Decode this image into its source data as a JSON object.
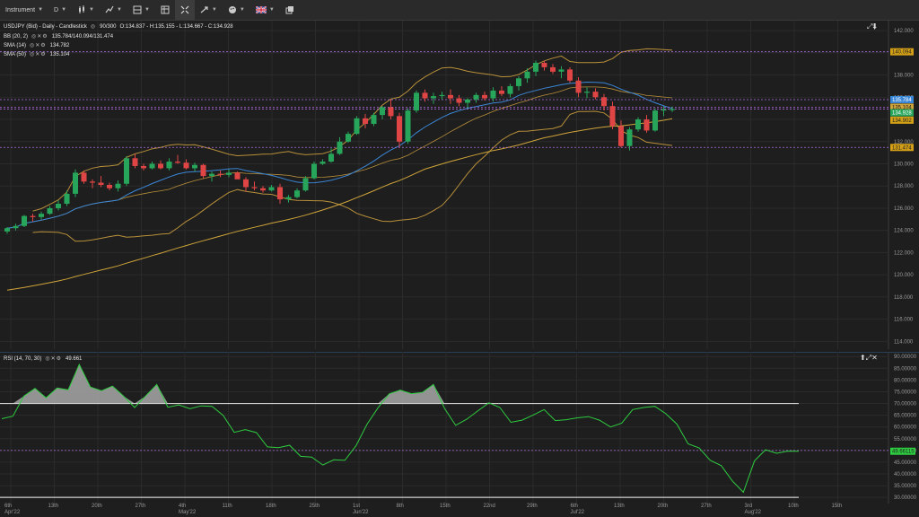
{
  "toolbar": {
    "instrument_label": "Instrument",
    "timeframe_label": "D",
    "flag": "gb-flag-icon"
  },
  "price_pane": {
    "header": "USDJPY (Bid) - Daily - Candlestick",
    "bars": "90/300",
    "ohlc": "O:134.837 - H:135.155 - L:134.667 - C:134.928",
    "indicators": [
      {
        "label": "BB (20, 2)",
        "value": "135.784/140.094/131.474"
      },
      {
        "label": "SMA (14)",
        "value": "134.782"
      },
      {
        "label": "SMA (50)",
        "value": "135.104"
      }
    ],
    "y_ticks": [
      "142.000",
      "140.000",
      "138.000",
      "136.000",
      "134.000",
      "132.000",
      "130.000",
      "128.000",
      "126.000",
      "124.000",
      "122.000",
      "120.000",
      "118.000",
      "116.000",
      "114.000"
    ],
    "price_tags": [
      {
        "text": "140.094",
        "color": "#d4a017",
        "fg": "#1e1e1e",
        "value": 140.094
      },
      {
        "text": "135.784",
        "color": "#3a86d6",
        "fg": "#ffffff",
        "value": 135.784
      },
      {
        "text": "135.104",
        "color": "#cfa43a",
        "fg": "#1e1e1e",
        "value": 135.104
      },
      {
        "text": "134.928",
        "color": "#27a55a",
        "fg": "#ffffff",
        "value": 134.928
      },
      {
        "text": "134.902",
        "color": "#d4a017",
        "fg": "#1e1e1e",
        "value": 134.902
      },
      {
        "text": "131.474",
        "color": "#d4a017",
        "fg": "#1e1e1e",
        "value": 131.474
      }
    ],
    "hlines": [
      140.094,
      135.784,
      135.104,
      134.928,
      131.474
    ]
  },
  "rsi_pane": {
    "header": "RSI (14, 70, 30)",
    "value": "49.661",
    "y_ticks": [
      "90.00000",
      "85.00000",
      "80.00000",
      "75.00000",
      "70.00000",
      "65.00000",
      "60.00000",
      "55.00000",
      "50.00000",
      "45.00000",
      "40.00000",
      "35.00000",
      "30.00000"
    ],
    "tag": {
      "text": "49.66115",
      "color": "#2ecc40"
    },
    "levels": {
      "upper": 70,
      "lower": 30,
      "mid": 50
    }
  },
  "x_axis": [
    {
      "label": "6th",
      "sub": "Apr'22"
    },
    {
      "label": "13th",
      "sub": ""
    },
    {
      "label": "20th",
      "sub": ""
    },
    {
      "label": "27th",
      "sub": ""
    },
    {
      "label": "4th",
      "sub": "May'22"
    },
    {
      "label": "11th",
      "sub": ""
    },
    {
      "label": "18th",
      "sub": ""
    },
    {
      "label": "25th",
      "sub": ""
    },
    {
      "label": "1st",
      "sub": "Jun'22"
    },
    {
      "label": "8th",
      "sub": ""
    },
    {
      "label": "15th",
      "sub": ""
    },
    {
      "label": "22nd",
      "sub": ""
    },
    {
      "label": "29th",
      "sub": ""
    },
    {
      "label": "6th",
      "sub": "Jul'22"
    },
    {
      "label": "13th",
      "sub": ""
    },
    {
      "label": "20th",
      "sub": ""
    },
    {
      "label": "27th",
      "sub": ""
    },
    {
      "label": "3rd",
      "sub": "Aug'22"
    },
    {
      "label": "10th",
      "sub": ""
    },
    {
      "label": "15th",
      "sub": ""
    }
  ],
  "chart_data": {
    "type": "candlestick",
    "candles": [
      [
        123.9,
        124.3,
        123.7,
        124.2
      ],
      [
        124.2,
        124.6,
        124.0,
        124.4
      ],
      [
        124.4,
        125.4,
        124.3,
        125.3
      ],
      [
        125.3,
        125.5,
        124.8,
        125.2
      ],
      [
        125.2,
        125.7,
        125.0,
        125.5
      ],
      [
        125.5,
        126.2,
        125.4,
        126.0
      ],
      [
        126.0,
        126.7,
        125.8,
        126.4
      ],
      [
        126.4,
        127.6,
        126.2,
        127.3
      ],
      [
        127.3,
        129.5,
        127.0,
        129.2
      ],
      [
        129.2,
        129.4,
        128.2,
        128.4
      ],
      [
        128.4,
        128.6,
        127.8,
        128.3
      ],
      [
        128.3,
        128.9,
        127.9,
        128.1
      ],
      [
        128.1,
        128.3,
        127.6,
        127.8
      ],
      [
        127.8,
        128.5,
        127.5,
        128.2
      ],
      [
        128.2,
        130.7,
        128.0,
        130.5
      ],
      [
        130.5,
        130.9,
        129.6,
        129.8
      ],
      [
        129.8,
        130.0,
        129.4,
        129.6
      ],
      [
        129.6,
        130.2,
        129.5,
        130.0
      ],
      [
        130.0,
        130.3,
        129.5,
        129.6
      ],
      [
        129.6,
        130.5,
        129.4,
        130.2
      ],
      [
        130.2,
        130.8,
        130.0,
        130.1
      ],
      [
        130.1,
        130.4,
        129.5,
        129.6
      ],
      [
        129.6,
        130.1,
        129.3,
        129.9
      ],
      [
        129.9,
        130.0,
        128.7,
        128.9
      ],
      [
        128.9,
        129.3,
        128.4,
        129.1
      ],
      [
        129.1,
        129.4,
        128.8,
        129.0
      ],
      [
        129.0,
        129.5,
        128.8,
        129.2
      ],
      [
        129.2,
        129.3,
        128.7,
        128.6
      ],
      [
        128.6,
        128.8,
        127.5,
        127.9
      ],
      [
        127.9,
        128.4,
        127.6,
        127.8
      ],
      [
        127.8,
        128.0,
        127.4,
        127.6
      ],
      [
        127.6,
        128.1,
        127.5,
        127.9
      ],
      [
        127.9,
        128.2,
        126.4,
        126.8
      ],
      [
        126.8,
        127.2,
        126.5,
        127.0
      ],
      [
        127.0,
        127.8,
        126.9,
        127.6
      ],
      [
        127.6,
        128.9,
        127.5,
        128.7
      ],
      [
        128.7,
        130.2,
        128.6,
        130.0
      ],
      [
        130.0,
        130.4,
        129.9,
        130.2
      ],
      [
        130.2,
        131.4,
        130.1,
        130.9
      ],
      [
        130.9,
        132.4,
        130.8,
        132.0
      ],
      [
        132.0,
        132.9,
        131.9,
        132.7
      ],
      [
        132.7,
        134.3,
        132.6,
        134.1
      ],
      [
        134.1,
        134.5,
        133.2,
        133.6
      ],
      [
        133.6,
        134.6,
        133.4,
        134.4
      ],
      [
        134.4,
        135.2,
        134.0,
        135.1
      ],
      [
        135.1,
        135.8,
        134.0,
        134.3
      ],
      [
        134.3,
        134.6,
        131.5,
        132.0
      ],
      [
        132.0,
        135.0,
        131.8,
        134.8
      ],
      [
        134.8,
        136.6,
        134.6,
        136.4
      ],
      [
        136.4,
        136.7,
        135.6,
        135.9
      ],
      [
        135.9,
        136.4,
        135.4,
        136.1
      ],
      [
        136.1,
        136.5,
        135.8,
        136.2
      ],
      [
        136.2,
        136.7,
        135.4,
        135.9
      ],
      [
        135.9,
        136.2,
        135.2,
        135.5
      ],
      [
        135.5,
        135.9,
        135.0,
        135.8
      ],
      [
        135.8,
        136.4,
        135.5,
        136.2
      ],
      [
        136.2,
        136.5,
        135.7,
        135.9
      ],
      [
        135.9,
        136.9,
        135.6,
        136.6
      ],
      [
        136.6,
        137.0,
        136.1,
        136.3
      ],
      [
        136.3,
        137.2,
        136.0,
        137.0
      ],
      [
        137.0,
        137.9,
        136.6,
        137.7
      ],
      [
        137.7,
        138.6,
        137.3,
        138.3
      ],
      [
        138.3,
        139.3,
        137.9,
        139.1
      ],
      [
        139.1,
        139.3,
        138.4,
        138.7
      ],
      [
        138.7,
        139.0,
        138.1,
        138.3
      ],
      [
        138.3,
        138.8,
        137.7,
        138.5
      ],
      [
        138.5,
        138.7,
        137.3,
        137.5
      ],
      [
        137.5,
        137.8,
        136.0,
        136.4
      ],
      [
        136.4,
        136.9,
        135.9,
        136.5
      ],
      [
        136.5,
        136.8,
        135.8,
        136.0
      ],
      [
        136.0,
        136.3,
        134.8,
        135.2
      ],
      [
        135.2,
        135.6,
        133.1,
        133.4
      ],
      [
        133.4,
        133.9,
        131.5,
        131.6
      ],
      [
        131.6,
        133.3,
        131.2,
        133.1
      ],
      [
        133.1,
        134.2,
        132.9,
        134.0
      ],
      [
        134.0,
        134.4,
        132.8,
        133.0
      ],
      [
        133.0,
        135.0,
        132.9,
        134.8
      ],
      [
        134.8,
        135.2,
        134.3,
        134.9
      ],
      [
        134.837,
        135.155,
        134.667,
        134.928
      ]
    ],
    "rsi": [
      63.5,
      64.6,
      73.2,
      76.4,
      72.4,
      76.6,
      75.8,
      86.6,
      77.0,
      75.4,
      77.4,
      73.1,
      68.3,
      73.2,
      78.1,
      68.4,
      69.4,
      67.8,
      69.0,
      68.8,
      64.9,
      57.7,
      58.9,
      57.6,
      51.5,
      51.2,
      52.2,
      47.5,
      47.2,
      43.8,
      46.0,
      45.8,
      52.0,
      61.2,
      68.2,
      74.1,
      75.7,
      74.2,
      74.7,
      78.1,
      67.9,
      60.7,
      63.3,
      66.8,
      70.3,
      68.3,
      62.0,
      62.9,
      65.1,
      67.4,
      62.7,
      63.1,
      63.9,
      64.4,
      62.9,
      60.0,
      61.6,
      67.4,
      68.3,
      68.8,
      65.6,
      61.2,
      52.8,
      51.1,
      45.8,
      43.5,
      37.0,
      32.2,
      45.6,
      50.3,
      48.8,
      49.7,
      49.661
    ]
  }
}
